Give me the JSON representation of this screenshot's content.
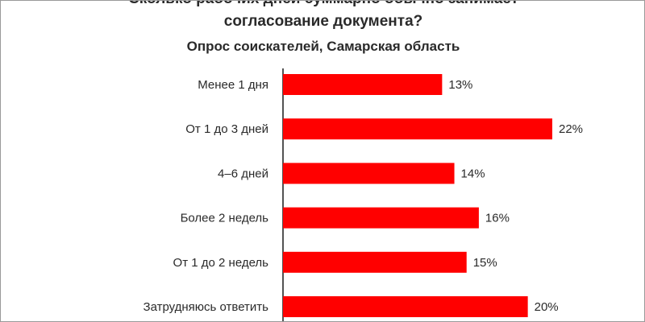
{
  "chart_data": {
    "type": "bar",
    "orientation": "horizontal",
    "title_lines": [
      "Сколько рабочих дней суммарно обычно занимает",
      "согласование документа?"
    ],
    "subtitle": "Опрос соискателей, Самарская область",
    "categories": [
      "Менее 1 дня",
      "От 1 до 3 дней",
      "4–6 дней",
      "Более 2 недель",
      "От 1 до 2 недель",
      "Затрудняюсь ответить"
    ],
    "values": [
      13,
      22,
      14,
      16,
      15,
      20
    ],
    "value_labels": [
      "13%",
      "22%",
      "14%",
      "16%",
      "15%",
      "20%"
    ],
    "bar_color": "#ff0000",
    "xlim": [
      0,
      22
    ],
    "grid": false,
    "legend": "none"
  }
}
